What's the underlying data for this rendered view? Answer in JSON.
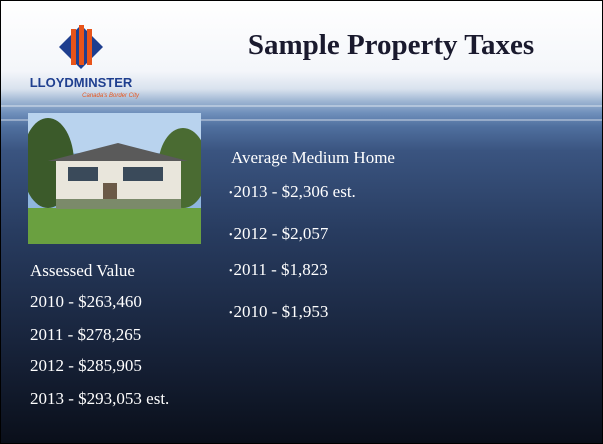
{
  "logo": {
    "name": "LLOYDMINSTER",
    "tagline": "Canada's Border City"
  },
  "title": "Sample Property Taxes",
  "assessed": {
    "heading": "Assessed Value",
    "items": [
      "2010 - $263,460",
      "2011 - $278,265",
      "2012 - $285,905",
      "2013 - $293,053 est."
    ]
  },
  "taxes": {
    "heading": "Average Medium Home",
    "items": [
      "2013 - $2,306 est.",
      "2012 - $2,057",
      "2011 - $1,823",
      "2010 - $1,953"
    ]
  }
}
